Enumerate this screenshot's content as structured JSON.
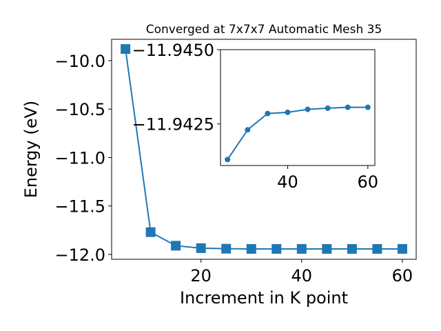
{
  "chart_data": [
    {
      "type": "line",
      "title": "Converged at 7x7x7 Automatic Mesh 35",
      "x_label": "Increment in K point",
      "y_label": "Energy (eV)",
      "x": [
        5,
        10,
        15,
        20,
        25,
        30,
        35,
        40,
        45,
        50,
        55,
        60
      ],
      "series": [
        {
          "color": "#1f77b4",
          "marker": "square",
          "values": [
            -9.88,
            -11.77,
            -11.91,
            -11.935,
            -11.941,
            -11.943,
            -11.943,
            -11.943,
            -11.943,
            -11.943,
            -11.943,
            -11.943
          ]
        }
      ],
      "xlim": [
        2.25,
        62.75
      ],
      "xticks": [
        20,
        40,
        60
      ],
      "ylim": [
        -12.05,
        -9.78
      ],
      "yticks": [
        {
          "value": -12.0,
          "label": "−12.0"
        },
        {
          "value": -11.5,
          "label": "−11.5"
        },
        {
          "value": -11.0,
          "label": "−11.0"
        },
        {
          "value": -10.5,
          "label": "−10.5"
        },
        {
          "value": -10.0,
          "label": "−10.0"
        }
      ]
    },
    {
      "type": "line",
      "x": [
        25,
        30,
        35,
        40,
        45,
        50,
        55,
        60
      ],
      "series": [
        {
          "color": "#1f77b4",
          "marker": "circle",
          "values": [
            -11.9413,
            -11.9423,
            -11.94285,
            -11.94289,
            -11.94299,
            -11.94303,
            -11.94306,
            -11.94306
          ]
        }
      ],
      "xlim": [
        23.25,
        61.75
      ],
      "xticks": [
        40,
        60
      ],
      "ylim": [
        -11.9411,
        -11.945
      ],
      "y_inverted": true,
      "yticks": [
        {
          "value": -11.9425,
          "label": "−11.9425"
        },
        {
          "value": -11.945,
          "label": "−11.9450"
        }
      ]
    }
  ]
}
